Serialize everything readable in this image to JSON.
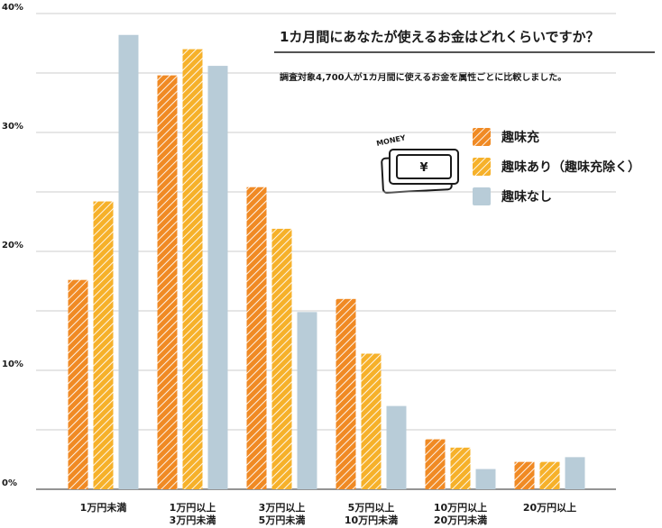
{
  "chart_data": {
    "type": "bar",
    "title": "1カ月間にあなたが使えるお金はどれくらいですか？",
    "subtitle": "調査対象4,700人が1カ月間に使えるお金を属性ごとに比較しました。",
    "icon_label": "MONEY",
    "icon_symbol": "¥",
    "categories": [
      [
        "1万円未満"
      ],
      [
        "1万円以上",
        "3万円未満"
      ],
      [
        "3万円以上",
        "5万円未満"
      ],
      [
        "5万円以上",
        "10万円未満"
      ],
      [
        "10万円以上",
        "20万円未満"
      ],
      [
        "20万円以上"
      ]
    ],
    "series": [
      {
        "name": "趣味充",
        "color": "#f08a24",
        "pattern": "hatch",
        "values": [
          17.6,
          34.8,
          25.4,
          16.0,
          4.2,
          2.3
        ]
      },
      {
        "name": "趣味あり（趣味充除く）",
        "color": "#f6b12a",
        "pattern": "hatch",
        "values": [
          24.2,
          37.0,
          21.9,
          11.4,
          3.5,
          2.3
        ]
      },
      {
        "name": "趣味なし",
        "color": "#b8ccd8",
        "pattern": "solid",
        "values": [
          38.2,
          35.6,
          14.9,
          7.0,
          1.7,
          2.7
        ]
      }
    ],
    "ylim": [
      0,
      40
    ],
    "yticks": [
      {
        "value": 0,
        "label": "0%"
      },
      {
        "value": 10,
        "label": "10%"
      },
      {
        "value": 20,
        "label": "20%"
      },
      {
        "value": 30,
        "label": "30%"
      },
      {
        "value": 40,
        "label": "40%"
      }
    ],
    "yminor": [
      5,
      15,
      25,
      35
    ],
    "grid": true,
    "legend": "upper right"
  }
}
